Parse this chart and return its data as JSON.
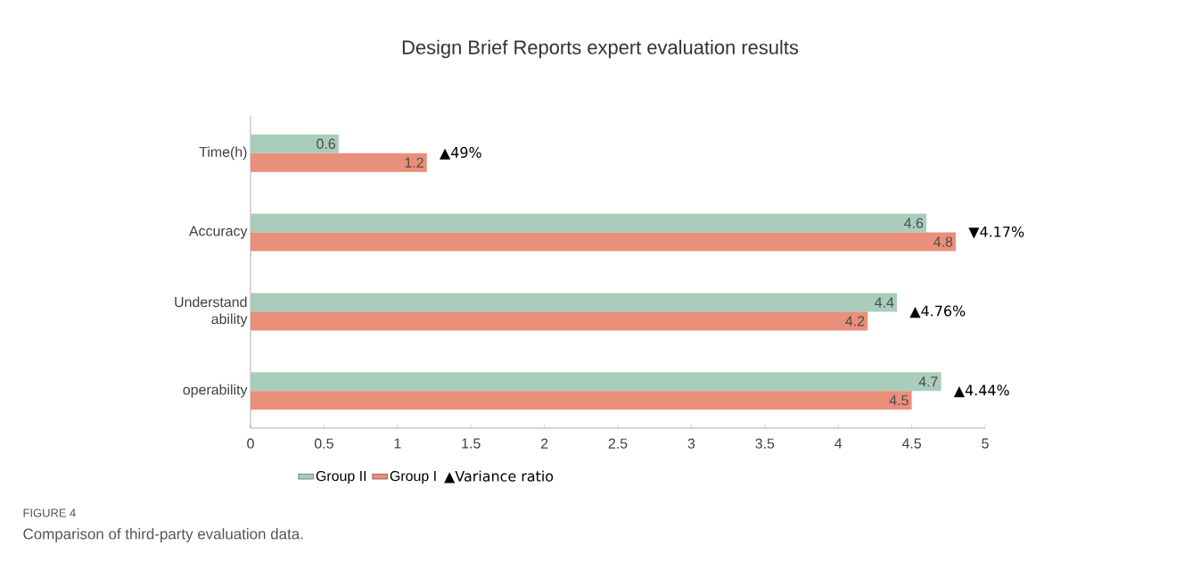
{
  "chart_data": {
    "type": "bar",
    "orientation": "horizontal",
    "title": "Design Brief Reports expert evaluation results",
    "categories": [
      "Time(h)",
      "Accuracy",
      "Understand ability",
      "operability"
    ],
    "series": [
      {
        "name": "Group II",
        "color": "#a9cdbb",
        "values": [
          0.6,
          4.6,
          4.4,
          4.7
        ]
      },
      {
        "name": "Group I",
        "color": "#e98f7a",
        "values": [
          1.2,
          4.8,
          4.2,
          4.5
        ]
      }
    ],
    "xlim": [
      0,
      5
    ],
    "xticks": [
      0,
      0.5,
      1,
      1.5,
      2,
      2.5,
      3,
      3.5,
      4,
      4.5,
      5
    ],
    "data_labels": true,
    "legend": "bottom",
    "grid": false,
    "annotations": [
      "▲49%",
      "▼4.17%",
      "▲4.76%",
      "▲4.44%",
      "▲Variance ratio",
      "FIGURE 4",
      "Comparison of third-party evaluation data."
    ]
  }
}
